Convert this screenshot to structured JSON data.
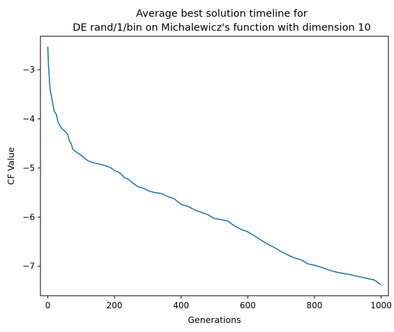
{
  "chart_data": {
    "type": "line",
    "title_lines": [
      "Average best solution timeline for",
      "DE rand/1/bin on Michalewicz's function with dimension 10"
    ],
    "xlabel": "Generations",
    "ylabel": "CF Value",
    "xlim": [
      -22,
      1022
    ],
    "ylim": [
      -7.6,
      -2.32
    ],
    "x_ticks": [
      0,
      200,
      400,
      600,
      800,
      1000
    ],
    "x_tick_labels": [
      "0",
      "200",
      "400",
      "600",
      "800",
      "1000"
    ],
    "y_ticks": [
      -3,
      -4,
      -5,
      -6,
      -7
    ],
    "y_tick_labels": [
      "−3",
      "−4",
      "−5",
      "−6",
      "−7"
    ],
    "grid": false,
    "legend": "none",
    "series": [
      {
        "color": "#1f77b4",
        "x": [
          0,
          2,
          4,
          6,
          8,
          10,
          12,
          14,
          16,
          18,
          20,
          22,
          25,
          28,
          30,
          35,
          40,
          45,
          50,
          55,
          60,
          65,
          70,
          75,
          80,
          85,
          90,
          95,
          100,
          110,
          120,
          130,
          140,
          150,
          160,
          170,
          180,
          190,
          200,
          210,
          220,
          230,
          240,
          250,
          260,
          270,
          280,
          290,
          300,
          320,
          340,
          360,
          380,
          400,
          420,
          440,
          460,
          480,
          500,
          520,
          540,
          560,
          580,
          600,
          620,
          640,
          660,
          680,
          700,
          720,
          740,
          760,
          780,
          800,
          820,
          840,
          860,
          880,
          900,
          920,
          940,
          960,
          980,
          1000
        ],
        "y": [
          -2.53,
          -2.9,
          -3.1,
          -3.32,
          -3.45,
          -3.5,
          -3.58,
          -3.65,
          -3.72,
          -3.8,
          -3.86,
          -3.87,
          -3.9,
          -3.98,
          -4.05,
          -4.12,
          -4.18,
          -4.22,
          -4.24,
          -4.28,
          -4.32,
          -4.45,
          -4.5,
          -4.62,
          -4.65,
          -4.67,
          -4.7,
          -4.72,
          -4.74,
          -4.8,
          -4.85,
          -4.88,
          -4.9,
          -4.91,
          -4.93,
          -4.95,
          -4.97,
          -5.0,
          -5.05,
          -5.08,
          -5.12,
          -5.2,
          -5.22,
          -5.28,
          -5.33,
          -5.38,
          -5.4,
          -5.42,
          -5.46,
          -5.5,
          -5.52,
          -5.58,
          -5.63,
          -5.74,
          -5.78,
          -5.85,
          -5.9,
          -5.95,
          -6.03,
          -6.05,
          -6.08,
          -6.18,
          -6.25,
          -6.3,
          -6.38,
          -6.47,
          -6.55,
          -6.62,
          -6.7,
          -6.77,
          -6.83,
          -6.87,
          -6.95,
          -6.98,
          -7.02,
          -7.07,
          -7.11,
          -7.14,
          -7.16,
          -7.19,
          -7.22,
          -7.25,
          -7.28,
          -7.38
        ]
      }
    ]
  }
}
